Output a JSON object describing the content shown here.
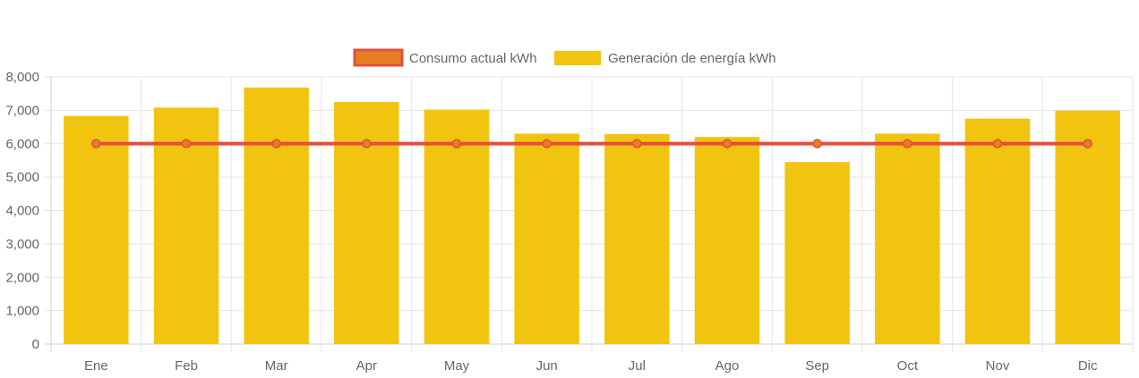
{
  "chart_data": {
    "type": "bar",
    "categories": [
      "Ene",
      "Feb",
      "Mar",
      "Apr",
      "May",
      "Jun",
      "Jul",
      "Ago",
      "Sep",
      "Oct",
      "Nov",
      "Dic"
    ],
    "series": [
      {
        "name": "Consumo actual kWh",
        "kind": "line",
        "values": [
          6000,
          6000,
          6000,
          6000,
          6000,
          6000,
          6000,
          6000,
          6000,
          6000,
          6000,
          6000
        ],
        "color": "#e74c3c",
        "point_color": "#e67e22"
      },
      {
        "name": "Generación de energía kWh",
        "kind": "bar",
        "values": [
          6830,
          7080,
          7680,
          7250,
          7020,
          6300,
          6290,
          6200,
          5450,
          6300,
          6750,
          6990
        ],
        "color": "#f1c40f"
      }
    ],
    "ylim": [
      0,
      8000
    ],
    "yticks": [
      "0",
      "1,000",
      "2,000",
      "3,000",
      "4,000",
      "5,000",
      "6,000",
      "7,000",
      "8,000"
    ],
    "ytick_values": [
      0,
      1000,
      2000,
      3000,
      4000,
      5000,
      6000,
      7000,
      8000
    ],
    "grid": true,
    "legend_position": "top-center",
    "title": "",
    "xlabel": "",
    "ylabel": ""
  }
}
